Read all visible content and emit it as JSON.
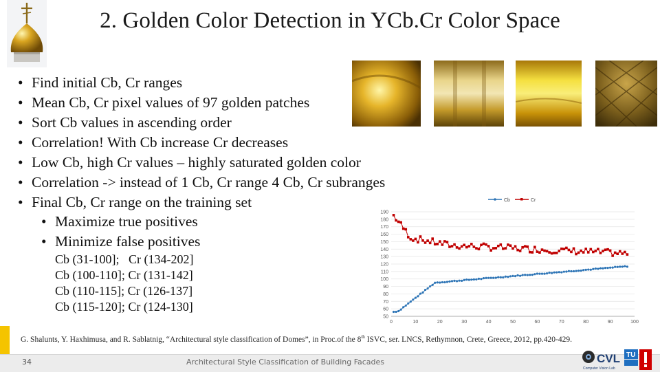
{
  "slide": {
    "title": "2. Golden Color Detection in YCb.Cr Color Space",
    "bullets": [
      "Find initial Cb, Cr ranges",
      "Mean Cb, Cr pixel values of 97 golden patches",
      "Sort Cb values in ascending order",
      "Correlation! With Cb increase Cr decreases",
      "Low Cb, high Cr values – highly saturated golden color",
      "Correlation -> instead of 1 Cb, Cr range 4 Cb, Cr subranges",
      "Final Cb, Cr range on the training set"
    ],
    "sub_bullets": [
      "Maximize true positives",
      "Minimize false positives"
    ],
    "ranges": [
      "Cb (31-100];   Cr (134-202]",
      "Cb (100-110]; Cr (131-142]",
      "Cb (110-115]; Cr (126-137]",
      "Cb (115-120]; Cr (124-130]"
    ],
    "reference": {
      "before": "G. Shalunts, Y. Haxhimusa, and R. Sablatnig, “Architectural style classification of  Domes”, in Proc.of the 8",
      "sup": "th",
      "after": " ISVC, ser. LNCS, Rethymnon, Crete, Greece, 2012, pp.420-429."
    },
    "page_number": "34",
    "footer_title": "Architectural Style Classification of Building Facades",
    "logo": {
      "text": "CVL",
      "badge": "TU",
      "subtext": "Computer Vision Lab"
    }
  },
  "colors": {
    "cb_series": "#2e75b6",
    "cr_series": "#c00000",
    "accent": "#f5c400"
  },
  "chart_data": {
    "type": "line",
    "legend_placement": "top",
    "grid": true,
    "xlim": [
      0,
      100
    ],
    "ylim": [
      50,
      190
    ],
    "x_ticks": [
      "0",
      "10",
      "20",
      "30",
      "40",
      "50",
      "60",
      "70",
      "80",
      "90",
      "100"
    ],
    "y_ticks": [
      "50",
      "60",
      "70",
      "80",
      "90",
      "100",
      "110",
      "120",
      "130",
      "140",
      "150",
      "160",
      "170",
      "180",
      "190"
    ],
    "series": [
      {
        "name": "Cb",
        "color": "#2e75b6",
        "start": 56,
        "end": 117
      },
      {
        "name": "Cr",
        "color": "#c00000",
        "start": 185,
        "end": 134
      }
    ]
  }
}
